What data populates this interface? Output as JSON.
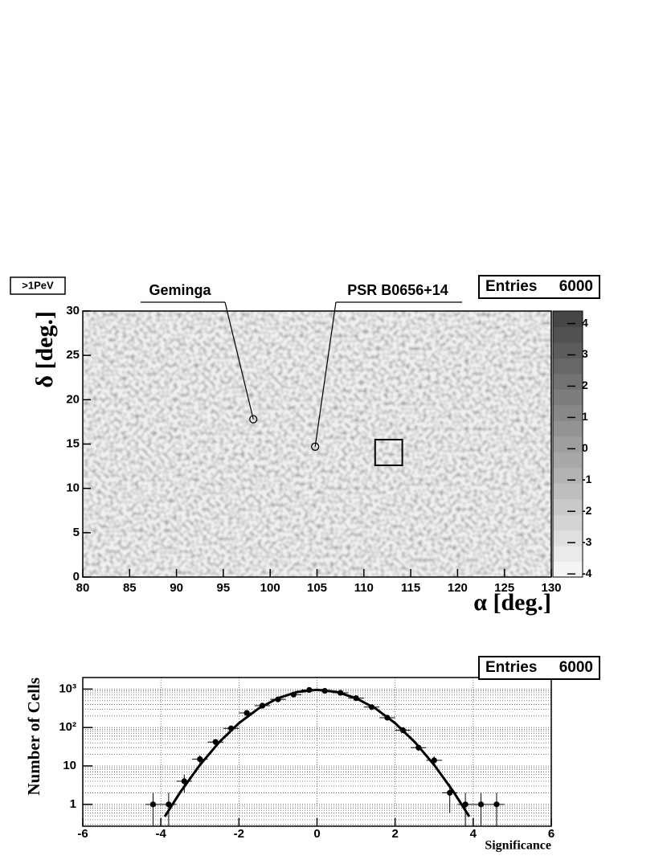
{
  "chart_data": [
    {
      "type": "heatmap",
      "label": ">1PeV",
      "xlabel": "α [deg.]",
      "ylabel": "δ [deg.]",
      "xlim": [
        80,
        130
      ],
      "xticks": [
        80,
        85,
        90,
        95,
        100,
        105,
        110,
        115,
        120,
        125,
        130
      ],
      "ylim": [
        0,
        30
      ],
      "yticks": [
        0,
        5,
        10,
        15,
        20,
        25,
        30
      ],
      "zlim": [
        -4.1,
        4.4
      ],
      "zticks": [
        -4,
        -3,
        -2,
        -1,
        0,
        1,
        2,
        3,
        4
      ],
      "stats": {
        "name": "Entries",
        "value": 6000
      },
      "annotations": [
        {
          "text": "Geminga",
          "x": 98.2,
          "y": 17.8
        },
        {
          "text": "PSR B0656+14",
          "x": 104.8,
          "y": 14.7
        }
      ],
      "region": {
        "x": [
          111.2,
          114.1
        ],
        "y": [
          12.6,
          15.5
        ]
      }
    },
    {
      "type": "errorbar",
      "xlabel": "Significance",
      "ylabel": "Number of Cells",
      "log_y": true,
      "grid": true,
      "color": "#000000",
      "xlim": [
        -6,
        6
      ],
      "xticks": [
        -6,
        -4,
        -2,
        0,
        2,
        4,
        6
      ],
      "ylim": [
        0.27,
        2000
      ],
      "yticks": [
        1,
        10,
        {
          "value": 100,
          "label": "10²"
        },
        {
          "value": 1000,
          "label": "10³"
        }
      ],
      "stats": {
        "name": "Entries",
        "value": 6000
      },
      "x": [
        -4.2,
        -3.8,
        -3.4,
        -3.0,
        -2.6,
        -2.2,
        -1.8,
        -1.4,
        -1.0,
        -0.6,
        -0.2,
        0.2,
        0.6,
        1.0,
        1.4,
        1.8,
        2.2,
        2.6,
        3.0,
        3.4,
        3.8,
        4.2,
        4.6
      ],
      "values": [
        1,
        1,
        4,
        15,
        42,
        95,
        240,
        370,
        540,
        720,
        950,
        900,
        800,
        580,
        340,
        180,
        85,
        30,
        14,
        2,
        1,
        1,
        1
      ],
      "errors": [
        1,
        1,
        2,
        3.9,
        6.5,
        9.7,
        15.5,
        19,
        23,
        27,
        31,
        30,
        28,
        24,
        18,
        13,
        9.2,
        5.5,
        3.7,
        1.4,
        1,
        1,
        1
      ],
      "fit": {
        "x": [
          -3.9,
          -3.5,
          -3.0,
          -2.5,
          -2.0,
          -1.5,
          -1.0,
          -0.5,
          0,
          0.5,
          1.0,
          1.5,
          2.0,
          2.5,
          3.0,
          3.5,
          3.9
        ],
        "values": [
          0.48,
          2.1,
          10.6,
          42,
          129.5,
          311,
          580,
          845,
          957,
          845,
          580,
          311,
          129.5,
          42,
          10.6,
          2.1,
          0.48
        ]
      }
    }
  ]
}
